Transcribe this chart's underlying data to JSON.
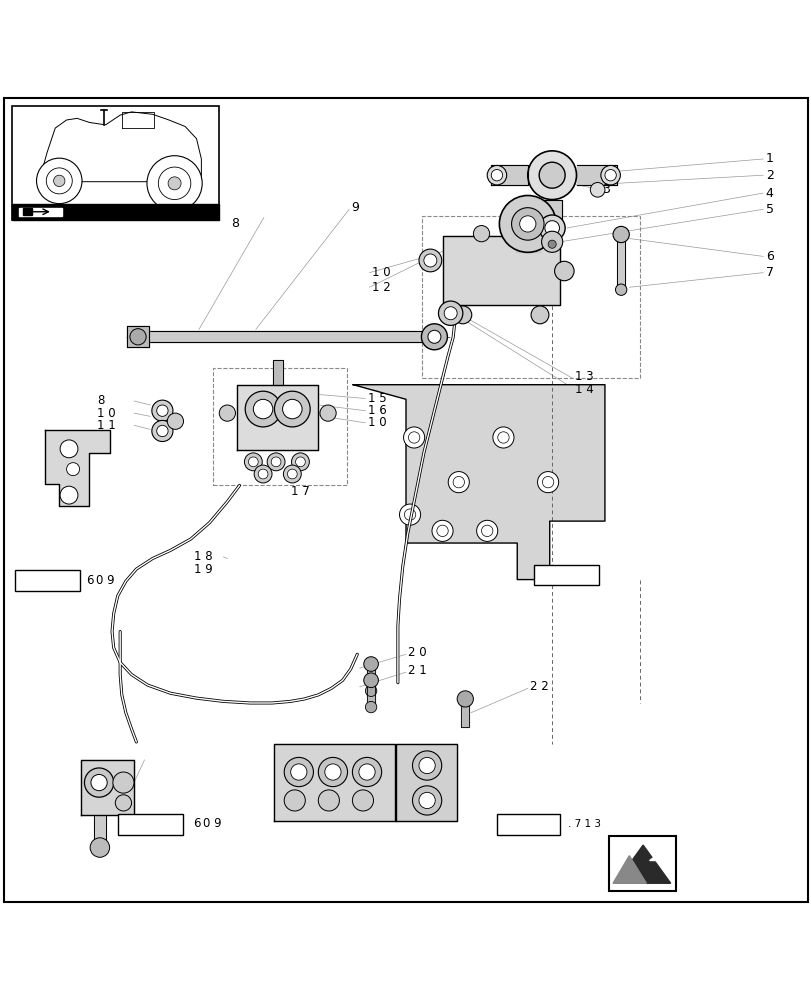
{
  "bg_color": "#ffffff",
  "line_color": "#000000",
  "light_line_color": "#999999",
  "dashed_color": "#777777",
  "fig_width": 8.12,
  "fig_height": 10.0,
  "dpi": 100
}
